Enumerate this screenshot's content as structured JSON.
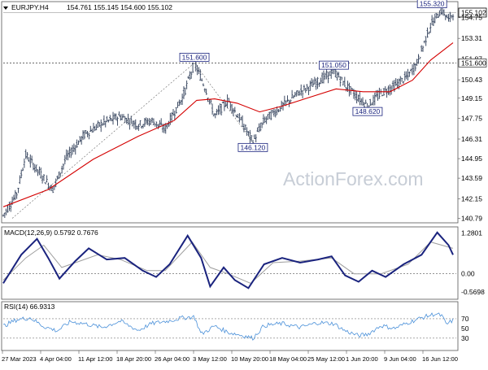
{
  "header": {
    "symbol": "EURJPY.H4",
    "ohlc": "154.761 155.145 154.600 155.102"
  },
  "watermark": "ActionForex.com",
  "colors": {
    "background": "#ffffff",
    "price_bars": "#2b3a55",
    "moving_average": "#d40000",
    "macd_line": "#1a237e",
    "macd_signal": "#9e9e9e",
    "rsi_line": "#4a90d9",
    "grid": "#888888",
    "label_border": "#1a237e",
    "current_price_box": "#000000",
    "watermark": "#c7cdd6"
  },
  "chart_data": [
    {
      "type": "line",
      "title": "EURJPY.H4",
      "subtitle": "154.761 155.145 154.600 155.102",
      "y_ticks": [
        155.102,
        154.75,
        153.31,
        151.87,
        151.6,
        150.43,
        149.15,
        147.75,
        146.31,
        144.95,
        143.59,
        142.15,
        140.79
      ],
      "ylim": [
        140.6,
        155.75
      ],
      "x_tick_labels": [
        "27 Mar 2023",
        "4 Apr 04:00",
        "11 Apr 12:00",
        "18 Apr 20:00",
        "26 Apr 04:00",
        "3 May 12:00",
        "10 May 20:00",
        "18 May 04:00",
        "25 May 12:00",
        "1 Jun 20:00",
        "9 Jun 04:00",
        "16 Jun 12:00"
      ],
      "reference_line": 151.6,
      "current_price": 155.102,
      "annotations": [
        {
          "label": "151.600",
          "value": 151.6
        },
        {
          "label": "146.120",
          "value": 146.12
        },
        {
          "label": "151.050",
          "value": 151.05
        },
        {
          "label": "148.620",
          "value": 148.62
        },
        {
          "label": "155.320",
          "value": 155.32
        }
      ],
      "price_points": [
        {
          "t": 0,
          "v": 141.0
        },
        {
          "t": 0.03,
          "v": 142.5
        },
        {
          "t": 0.05,
          "v": 145.2
        },
        {
          "t": 0.08,
          "v": 144.0
        },
        {
          "t": 0.11,
          "v": 142.8
        },
        {
          "t": 0.14,
          "v": 145.0
        },
        {
          "t": 0.18,
          "v": 146.6
        },
        {
          "t": 0.22,
          "v": 147.4
        },
        {
          "t": 0.26,
          "v": 147.9
        },
        {
          "t": 0.3,
          "v": 147.3
        },
        {
          "t": 0.33,
          "v": 147.6
        },
        {
          "t": 0.36,
          "v": 147.0
        },
        {
          "t": 0.4,
          "v": 149.3
        },
        {
          "t": 0.425,
          "v": 151.6
        },
        {
          "t": 0.45,
          "v": 149.8
        },
        {
          "t": 0.47,
          "v": 147.9
        },
        {
          "t": 0.5,
          "v": 149.0
        },
        {
          "t": 0.53,
          "v": 147.5
        },
        {
          "t": 0.555,
          "v": 146.12
        },
        {
          "t": 0.58,
          "v": 147.6
        },
        {
          "t": 0.62,
          "v": 148.6
        },
        {
          "t": 0.66,
          "v": 149.6
        },
        {
          "t": 0.7,
          "v": 150.3
        },
        {
          "t": 0.735,
          "v": 151.05
        },
        {
          "t": 0.76,
          "v": 150.1
        },
        {
          "t": 0.785,
          "v": 149.3
        },
        {
          "t": 0.81,
          "v": 148.62
        },
        {
          "t": 0.84,
          "v": 149.5
        },
        {
          "t": 0.87,
          "v": 150.0
        },
        {
          "t": 0.9,
          "v": 150.7
        },
        {
          "t": 0.92,
          "v": 151.6
        },
        {
          "t": 0.95,
          "v": 154.2
        },
        {
          "t": 0.975,
          "v": 155.32
        },
        {
          "t": 0.99,
          "v": 154.6
        },
        {
          "t": 1.0,
          "v": 155.1
        }
      ],
      "moving_average_points": [
        {
          "t": 0,
          "v": 141.6
        },
        {
          "t": 0.1,
          "v": 142.8
        },
        {
          "t": 0.2,
          "v": 144.9
        },
        {
          "t": 0.3,
          "v": 146.5
        },
        {
          "t": 0.38,
          "v": 147.6
        },
        {
          "t": 0.43,
          "v": 149.0
        },
        {
          "t": 0.47,
          "v": 149.1
        },
        {
          "t": 0.52,
          "v": 148.8
        },
        {
          "t": 0.57,
          "v": 148.2
        },
        {
          "t": 0.62,
          "v": 148.6
        },
        {
          "t": 0.68,
          "v": 149.2
        },
        {
          "t": 0.74,
          "v": 149.8
        },
        {
          "t": 0.8,
          "v": 149.6
        },
        {
          "t": 0.86,
          "v": 149.6
        },
        {
          "t": 0.91,
          "v": 150.4
        },
        {
          "t": 0.95,
          "v": 151.8
        },
        {
          "t": 1.0,
          "v": 153.0
        }
      ]
    },
    {
      "type": "line",
      "title": "MACD(12,26,9) 0.5792 0.7676",
      "y_ticks": [
        "1.2801",
        "0.00",
        "-0.5698"
      ],
      "ylim": [
        -0.75,
        1.4
      ],
      "macd_points": [
        {
          "t": 0,
          "v": -0.3
        },
        {
          "t": 0.04,
          "v": 0.6
        },
        {
          "t": 0.075,
          "v": 1.1
        },
        {
          "t": 0.1,
          "v": 0.5
        },
        {
          "t": 0.125,
          "v": -0.15
        },
        {
          "t": 0.16,
          "v": 0.4
        },
        {
          "t": 0.19,
          "v": 0.8
        },
        {
          "t": 0.23,
          "v": 0.45
        },
        {
          "t": 0.27,
          "v": 0.5
        },
        {
          "t": 0.31,
          "v": 0.1
        },
        {
          "t": 0.34,
          "v": -0.1
        },
        {
          "t": 0.37,
          "v": 0.3
        },
        {
          "t": 0.41,
          "v": 1.2
        },
        {
          "t": 0.44,
          "v": 0.5
        },
        {
          "t": 0.46,
          "v": -0.4
        },
        {
          "t": 0.49,
          "v": 0.2
        },
        {
          "t": 0.515,
          "v": -0.2
        },
        {
          "t": 0.545,
          "v": -0.45
        },
        {
          "t": 0.58,
          "v": 0.3
        },
        {
          "t": 0.62,
          "v": 0.5
        },
        {
          "t": 0.66,
          "v": 0.35
        },
        {
          "t": 0.7,
          "v": 0.45
        },
        {
          "t": 0.73,
          "v": 0.55
        },
        {
          "t": 0.76,
          "v": -0.05
        },
        {
          "t": 0.79,
          "v": -0.25
        },
        {
          "t": 0.82,
          "v": 0.1
        },
        {
          "t": 0.85,
          "v": -0.1
        },
        {
          "t": 0.89,
          "v": 0.3
        },
        {
          "t": 0.93,
          "v": 0.6
        },
        {
          "t": 0.965,
          "v": 1.3
        },
        {
          "t": 0.99,
          "v": 0.9
        },
        {
          "t": 1.0,
          "v": 0.6
        }
      ],
      "signal_points": [
        {
          "t": 0,
          "v": -0.2
        },
        {
          "t": 0.05,
          "v": 0.5
        },
        {
          "t": 0.09,
          "v": 0.9
        },
        {
          "t": 0.13,
          "v": 0.2
        },
        {
          "t": 0.17,
          "v": 0.4
        },
        {
          "t": 0.21,
          "v": 0.6
        },
        {
          "t": 0.26,
          "v": 0.45
        },
        {
          "t": 0.32,
          "v": 0.1
        },
        {
          "t": 0.36,
          "v": 0.1
        },
        {
          "t": 0.42,
          "v": 1.0
        },
        {
          "t": 0.46,
          "v": 0.2
        },
        {
          "t": 0.5,
          "v": 0.0
        },
        {
          "t": 0.55,
          "v": -0.3
        },
        {
          "t": 0.6,
          "v": 0.35
        },
        {
          "t": 0.66,
          "v": 0.4
        },
        {
          "t": 0.73,
          "v": 0.5
        },
        {
          "t": 0.78,
          "v": 0.0
        },
        {
          "t": 0.84,
          "v": 0.0
        },
        {
          "t": 0.9,
          "v": 0.3
        },
        {
          "t": 0.95,
          "v": 1.0
        },
        {
          "t": 1.0,
          "v": 0.8
        }
      ]
    },
    {
      "type": "line",
      "title": "RSI(14) 66.9313",
      "y_ticks": [
        "70",
        "50",
        "30"
      ],
      "ylim": [
        8,
        100
      ],
      "rsi_points": [
        {
          "t": 0,
          "v": 55
        },
        {
          "t": 0.03,
          "v": 68
        },
        {
          "t": 0.06,
          "v": 72
        },
        {
          "t": 0.09,
          "v": 54
        },
        {
          "t": 0.12,
          "v": 45
        },
        {
          "t": 0.15,
          "v": 64
        },
        {
          "t": 0.18,
          "v": 60
        },
        {
          "t": 0.22,
          "v": 52
        },
        {
          "t": 0.26,
          "v": 65
        },
        {
          "t": 0.3,
          "v": 46
        },
        {
          "t": 0.33,
          "v": 60
        },
        {
          "t": 0.37,
          "v": 66
        },
        {
          "t": 0.4,
          "v": 72
        },
        {
          "t": 0.425,
          "v": 74
        },
        {
          "t": 0.44,
          "v": 38
        },
        {
          "t": 0.47,
          "v": 55
        },
        {
          "t": 0.5,
          "v": 42
        },
        {
          "t": 0.53,
          "v": 36
        },
        {
          "t": 0.555,
          "v": 30
        },
        {
          "t": 0.58,
          "v": 56
        },
        {
          "t": 0.62,
          "v": 60
        },
        {
          "t": 0.66,
          "v": 52
        },
        {
          "t": 0.7,
          "v": 62
        },
        {
          "t": 0.735,
          "v": 60
        },
        {
          "t": 0.76,
          "v": 45
        },
        {
          "t": 0.79,
          "v": 35
        },
        {
          "t": 0.81,
          "v": 38
        },
        {
          "t": 0.84,
          "v": 56
        },
        {
          "t": 0.87,
          "v": 50
        },
        {
          "t": 0.9,
          "v": 62
        },
        {
          "t": 0.93,
          "v": 72
        },
        {
          "t": 0.96,
          "v": 80
        },
        {
          "t": 0.975,
          "v": 76
        },
        {
          "t": 0.985,
          "v": 58
        },
        {
          "t": 1.0,
          "v": 67
        }
      ]
    }
  ]
}
